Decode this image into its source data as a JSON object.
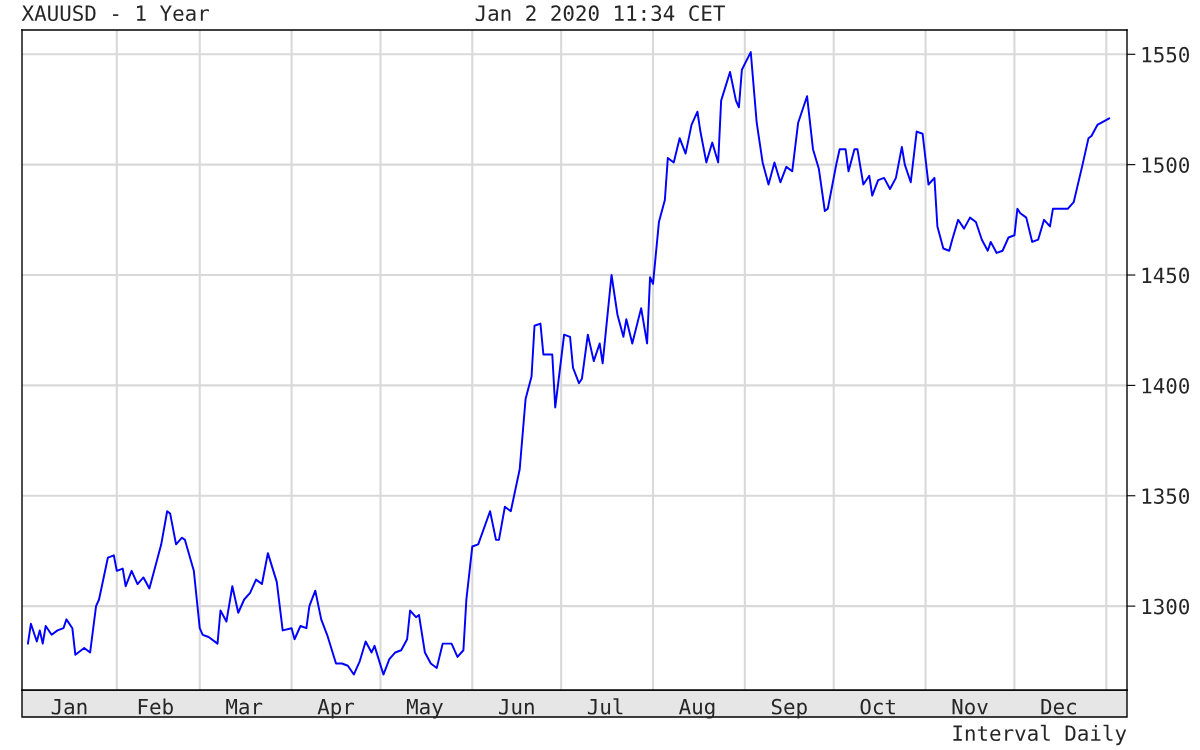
{
  "chart_data": {
    "type": "line",
    "title": "XAUUSD - 1 Year",
    "subtitle": "Jan 2 2020 11:34 CET",
    "annotations": [
      "Interval Daily"
    ],
    "x": [
      "2019-01-02",
      "2019-01-03",
      "2019-01-05",
      "2019-01-06",
      "2019-01-07",
      "2019-01-08",
      "2019-01-10",
      "2019-01-12",
      "2019-01-14",
      "2019-01-15",
      "2019-01-17",
      "2019-01-18",
      "2019-01-21",
      "2019-01-23",
      "2019-01-25",
      "2019-01-26",
      "2019-01-29",
      "2019-01-31",
      "2019-02-01",
      "2019-02-03",
      "2019-02-04",
      "2019-02-06",
      "2019-02-08",
      "2019-02-10",
      "2019-02-12",
      "2019-02-14",
      "2019-02-16",
      "2019-02-18",
      "2019-02-19",
      "2019-02-21",
      "2019-02-23",
      "2019-02-24",
      "2019-02-27",
      "2019-03-01",
      "2019-03-02",
      "2019-03-04",
      "2019-03-07",
      "2019-03-08",
      "2019-03-10",
      "2019-03-12",
      "2019-03-14",
      "2019-03-16",
      "2019-03-18",
      "2019-03-20",
      "2019-03-22",
      "2019-03-24",
      "2019-03-27",
      "2019-03-29",
      "2019-04-01",
      "2019-04-02",
      "2019-04-04",
      "2019-04-06",
      "2019-04-07",
      "2019-04-09",
      "2019-04-11",
      "2019-04-13",
      "2019-04-16",
      "2019-04-18",
      "2019-04-20",
      "2019-04-22",
      "2019-04-24",
      "2019-04-26",
      "2019-04-28",
      "2019-04-29",
      "2019-05-02",
      "2019-05-04",
      "2019-05-06",
      "2019-05-08",
      "2019-05-10",
      "2019-05-11",
      "2019-05-13",
      "2019-05-14",
      "2019-05-16",
      "2019-05-18",
      "2019-05-20",
      "2019-05-22",
      "2019-05-25",
      "2019-05-27",
      "2019-05-29",
      "2019-05-30",
      "2019-06-01",
      "2019-06-03",
      "2019-06-07",
      "2019-06-09",
      "2019-06-10",
      "2019-06-12",
      "2019-06-14",
      "2019-06-17",
      "2019-06-19",
      "2019-06-21",
      "2019-06-22",
      "2019-06-24",
      "2019-06-25",
      "2019-06-28",
      "2019-06-29",
      "2019-07-02",
      "2019-07-04",
      "2019-07-05",
      "2019-07-07",
      "2019-07-08",
      "2019-07-10",
      "2019-07-12",
      "2019-07-14",
      "2019-07-15",
      "2019-07-18",
      "2019-07-20",
      "2019-07-22",
      "2019-07-23",
      "2019-07-25",
      "2019-07-28",
      "2019-07-30",
      "2019-07-31",
      "2019-08-01",
      "2019-08-03",
      "2019-08-05",
      "2019-08-06",
      "2019-08-08",
      "2019-08-10",
      "2019-08-12",
      "2019-08-14",
      "2019-08-16",
      "2019-08-17",
      "2019-08-19",
      "2019-08-21",
      "2019-08-23",
      "2019-08-24",
      "2019-08-27",
      "2019-08-29",
      "2019-08-30",
      "2019-08-31",
      "2019-09-03",
      "2019-09-05",
      "2019-09-07",
      "2019-09-09",
      "2019-09-11",
      "2019-09-13",
      "2019-09-15",
      "2019-09-17",
      "2019-09-19",
      "2019-09-22",
      "2019-09-24",
      "2019-09-26",
      "2019-09-28",
      "2019-09-29",
      "2019-10-02",
      "2019-10-03",
      "2019-10-05",
      "2019-10-06",
      "2019-10-08",
      "2019-10-09",
      "2019-10-11",
      "2019-10-13",
      "2019-10-14",
      "2019-10-16",
      "2019-10-18",
      "2019-10-20",
      "2019-10-22",
      "2019-10-24",
      "2019-10-25",
      "2019-10-27",
      "2019-10-29",
      "2019-10-31",
      "2019-11-02",
      "2019-11-04",
      "2019-11-05",
      "2019-11-07",
      "2019-11-09",
      "2019-11-10",
      "2019-11-12",
      "2019-11-14",
      "2019-11-16",
      "2019-11-18",
      "2019-11-20",
      "2019-11-22",
      "2019-11-23",
      "2019-11-25",
      "2019-11-27",
      "2019-11-29",
      "2019-12-01",
      "2019-12-02",
      "2019-12-03",
      "2019-12-05",
      "2019-12-07",
      "2019-12-09",
      "2019-12-11",
      "2019-12-13",
      "2019-12-14",
      "2019-12-16",
      "2019-12-19",
      "2019-12-21",
      "2019-12-24",
      "2019-12-26",
      "2019-12-27",
      "2019-12-29",
      "2020-01-02"
    ],
    "series": [
      {
        "color": "#0000ff",
        "values": [
          1283,
          1292,
          1284,
          1289,
          1283,
          1291,
          1287,
          1289,
          1290,
          1294,
          1290,
          1278,
          1281,
          1279,
          1300,
          1303,
          1322,
          1323,
          1316,
          1317,
          1309,
          1316,
          1310,
          1313,
          1308,
          1318,
          1328,
          1343,
          1342,
          1328,
          1331,
          1330,
          1316,
          1290,
          1287,
          1286,
          1283,
          1298,
          1293,
          1309,
          1297,
          1303,
          1306,
          1312,
          1310,
          1324,
          1311,
          1289,
          1290,
          1285,
          1291,
          1290,
          1300,
          1307,
          1294,
          1287,
          1274,
          1274,
          1273,
          1269,
          1275,
          1284,
          1279,
          1282,
          1269,
          1276,
          1279,
          1280,
          1285,
          1298,
          1295,
          1296,
          1279,
          1274,
          1272,
          1283,
          1283,
          1277,
          1280,
          1303,
          1327,
          1328,
          1343,
          1330,
          1330,
          1345,
          1343,
          1362,
          1394,
          1404,
          1427,
          1428,
          1414,
          1414,
          1390,
          1423,
          1422,
          1408,
          1401,
          1403,
          1423,
          1411,
          1419,
          1410,
          1450,
          1432,
          1422,
          1430,
          1419,
          1435,
          1419,
          1449,
          1446,
          1474,
          1484,
          1503,
          1501,
          1512,
          1505,
          1518,
          1524,
          1515,
          1501,
          1510,
          1501,
          1529,
          1542,
          1529,
          1526,
          1543,
          1551,
          1519,
          1501,
          1491,
          1501,
          1492,
          1499,
          1497,
          1519,
          1531,
          1507,
          1498,
          1479,
          1480,
          1501,
          1507,
          1507,
          1497,
          1507,
          1507,
          1491,
          1495,
          1486,
          1493,
          1494,
          1489,
          1494,
          1508,
          1500,
          1492,
          1515,
          1514,
          1491,
          1494,
          1472,
          1462,
          1461,
          1466,
          1475,
          1471,
          1476,
          1474,
          1466,
          1461,
          1465,
          1460,
          1461,
          1467,
          1468,
          1480,
          1478,
          1476,
          1465,
          1466,
          1475,
          1472,
          1480,
          1480,
          1480,
          1483,
          1500,
          1512,
          1513,
          1518,
          1521
        ]
      }
    ],
    "xlim": [
      "2018-12-31",
      "2020-01-08"
    ],
    "xticks": [
      {
        "value": "2019-02-01",
        "label": null
      },
      {
        "value": "2019-03-01",
        "label": null
      },
      {
        "value": "2019-04-01",
        "label": null
      },
      {
        "value": "2019-05-01",
        "label": null
      },
      {
        "value": "2019-06-01",
        "label": null
      },
      {
        "value": "2019-07-01",
        "label": null
      },
      {
        "value": "2019-08-01",
        "label": null
      },
      {
        "value": "2019-09-01",
        "label": null
      },
      {
        "value": "2019-10-01",
        "label": null
      },
      {
        "value": "2019-11-01",
        "label": null
      },
      {
        "value": "2019-12-01",
        "label": null
      },
      {
        "value": "2020-01-01",
        "label": null
      },
      {
        "value": "2019-01-16",
        "label": "Jan"
      },
      {
        "value": "2019-02-14",
        "label": "Feb"
      },
      {
        "value": "2019-03-16",
        "label": "Mar"
      },
      {
        "value": "2019-04-16",
        "label": "Apr"
      },
      {
        "value": "2019-05-16",
        "label": "May"
      },
      {
        "value": "2019-06-16",
        "label": "Jun"
      },
      {
        "value": "2019-07-16",
        "label": "Jul"
      },
      {
        "value": "2019-08-16",
        "label": "Aug"
      },
      {
        "value": "2019-09-16",
        "label": "Sep"
      },
      {
        "value": "2019-10-16",
        "label": "Oct"
      },
      {
        "value": "2019-11-16",
        "label": "Nov"
      },
      {
        "value": "2019-12-16",
        "label": "Dec"
      }
    ],
    "ylim": [
      1262,
      1561
    ],
    "yticks": [
      1300,
      1350,
      1400,
      1450,
      1500,
      1550
    ],
    "grid": true,
    "marker": "none",
    "line_style": "solid"
  }
}
